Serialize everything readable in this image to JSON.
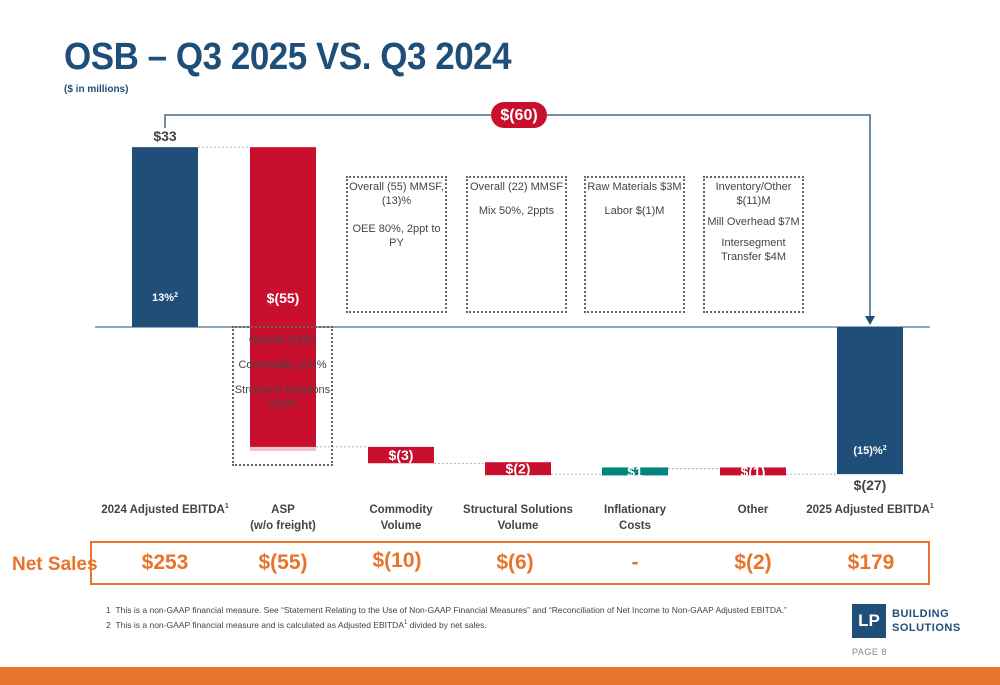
{
  "title": "OSB – Q3 2025 VS. Q3 2024",
  "subtitle": "($ in millions)",
  "chart_data": {
    "type": "bar",
    "categories": [
      "2024 Adjusted EBITDA",
      "ASP (w/o freight)",
      "Commodity Volume",
      "Structural Solutions Volume",
      "Inflationary Costs",
      "Other",
      "2025 Adjusted EBITDA"
    ],
    "category_labels": [
      {
        "line1": "2024 Adjusted EBITDA",
        "sup": "1",
        "line2": ""
      },
      {
        "line1": "ASP",
        "sup": "",
        "line2": "(w/o freight)"
      },
      {
        "line1": "Commodity",
        "sup": "",
        "line2": "Volume"
      },
      {
        "line1": "Structural Solutions",
        "sup": "",
        "line2": "Volume"
      },
      {
        "line1": "Inflationary",
        "sup": "",
        "line2": "Costs"
      },
      {
        "line1": "Other",
        "sup": "",
        "line2": ""
      },
      {
        "line1": "2025 Adjusted EBITDA",
        "sup": "1",
        "line2": ""
      }
    ],
    "values": [
      33,
      -55,
      -3,
      -2,
      1,
      -1,
      -27
    ],
    "value_labels": [
      "$33",
      "$(55)",
      "$(3)",
      "$(2)",
      "$1",
      "$(1)",
      "$(27)"
    ],
    "margin_labels": [
      {
        "text": "13%",
        "sup": "2"
      },
      {
        "text": "(15)%",
        "sup": "2"
      }
    ],
    "ylim": [
      -33,
      35
    ],
    "change_label": "$(60)",
    "colors": {
      "total": "#1f4e79",
      "decrease": "#c8102e",
      "increase": "#00857c",
      "asp_detail": "#f2c2cc"
    }
  },
  "boxes": {
    "asp": [
      "Overall (24)%",
      "Commodity (31)%",
      "Structural Solutions (20)%"
    ],
    "commodity": [
      "Overall (55) MMSF, (13)%",
      "OEE 80%, 2ppt to PY"
    ],
    "structural": [
      "Overall (22) MMSF",
      "Mix 50%, 2ppts"
    ],
    "inflationary": [
      "Raw Materials $3M",
      "Labor $(1)M"
    ],
    "other": [
      "Inventory/Other $(11)M",
      "Mill Overhead $7M",
      "Intersegment Transfer $4M"
    ]
  },
  "net_sales": {
    "label": "Net Sales",
    "values": [
      "$253",
      "$(55)",
      "$(10)",
      "$(6)",
      "-",
      "$(2)",
      "$179"
    ]
  },
  "footnotes": {
    "f1_num": "1",
    "f1": "This is a non-GAAP financial measure. See “Statement Relating to the Use of Non-GAAP Financial Measures” and “Reconciliation of Net Income to Non-GAAP Adjusted EBITDA.”",
    "f2_num": "2",
    "f2a": "This is a non-GAAP financial measure and is calculated as Adjusted EBITDA",
    "f2_sup": "1",
    "f2b": " divided by net sales."
  },
  "logo": {
    "mark": "LP",
    "line1": "BUILDING",
    "line2": "SOLUTIONS"
  },
  "page": "PAGE 8"
}
